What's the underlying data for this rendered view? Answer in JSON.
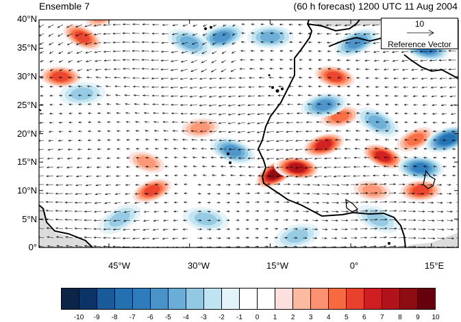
{
  "header": {
    "title_left": "Ensemble 7",
    "title_right": "(60 h forecast) 1200 UTC 11 Aug 2004"
  },
  "reference_vector": {
    "magnitude": "10",
    "label": "Reference Vector"
  },
  "map": {
    "lat_labels": [
      "40°N",
      "35°N",
      "30°N",
      "25°N",
      "20°N",
      "15°N",
      "10°N",
      "5°N",
      "0°"
    ],
    "lon_labels": [
      "45°W",
      "30°W",
      "15°W",
      "0°",
      "15°E"
    ],
    "lon_range": [
      -58,
      20
    ],
    "lat_range": [
      0,
      40
    ],
    "land_color": "#f2f2f2",
    "coast_color": "#000000"
  },
  "colorbar": {
    "labels": [
      "-10",
      "-9",
      "-8",
      "-7",
      "-6",
      "-5",
      "-4",
      "-3",
      "-2",
      "-1",
      "0",
      "1",
      "2",
      "3",
      "4",
      "5",
      "6",
      "7",
      "8",
      "9",
      "10"
    ],
    "colors": [
      "#0b2448",
      "#0b3366",
      "#1a5a99",
      "#2470b0",
      "#2e7cbc",
      "#4a93c9",
      "#6aadd6",
      "#92c8e2",
      "#bfe3f0",
      "#e3f3fa",
      "#ffffff",
      "#ffffff",
      "#fde0dd",
      "#fcbba1",
      "#fc9272",
      "#f7693f",
      "#e8412e",
      "#cf1f22",
      "#b0141a",
      "#8c0d12",
      "#67000d"
    ]
  },
  "anomaly_features": [
    {
      "lon": -14,
      "lat": 13,
      "value": 9
    },
    {
      "lon": -10,
      "lat": 14,
      "value": 8
    },
    {
      "lon": -5,
      "lat": 18,
      "value": 7
    },
    {
      "lon": 6,
      "lat": 16,
      "value": 7
    },
    {
      "lon": 13,
      "lat": 10,
      "value": 6
    },
    {
      "lon": 12,
      "lat": 19,
      "value": 5
    },
    {
      "lon": -3,
      "lat": 30,
      "value": 6
    },
    {
      "lon": -2,
      "lat": 23,
      "value": 5
    },
    {
      "lon": -50,
      "lat": 37,
      "value": 6
    },
    {
      "lon": -54,
      "lat": 30,
      "value": 6
    },
    {
      "lon": -37,
      "lat": 10,
      "value": 6
    },
    {
      "lon": -38,
      "lat": 15,
      "value": 4
    },
    {
      "lon": -28,
      "lat": 21,
      "value": 4
    },
    {
      "lon": -46,
      "lat": 41,
      "value": 5
    },
    {
      "lon": 4,
      "lat": 10,
      "value": 4
    },
    {
      "lon": -24,
      "lat": 37,
      "value": -5
    },
    {
      "lon": -30,
      "lat": 36,
      "value": -4
    },
    {
      "lon": -15,
      "lat": 37,
      "value": -4
    },
    {
      "lon": 1,
      "lat": 36,
      "value": -5
    },
    {
      "lon": 14,
      "lat": 35,
      "value": -6
    },
    {
      "lon": -5,
      "lat": 25,
      "value": -5
    },
    {
      "lon": 5,
      "lat": 22,
      "value": -4
    },
    {
      "lon": 13,
      "lat": 14,
      "value": -6
    },
    {
      "lon": 18,
      "lat": 19,
      "value": -7
    },
    {
      "lon": -22,
      "lat": 17,
      "value": -5
    },
    {
      "lon": -50,
      "lat": 27,
      "value": -3
    },
    {
      "lon": -43,
      "lat": 5,
      "value": -3
    },
    {
      "lon": -27,
      "lat": 5,
      "value": -3
    },
    {
      "lon": -10,
      "lat": 2,
      "value": -3
    },
    {
      "lon": 5,
      "lat": 5,
      "value": -3
    }
  ]
}
